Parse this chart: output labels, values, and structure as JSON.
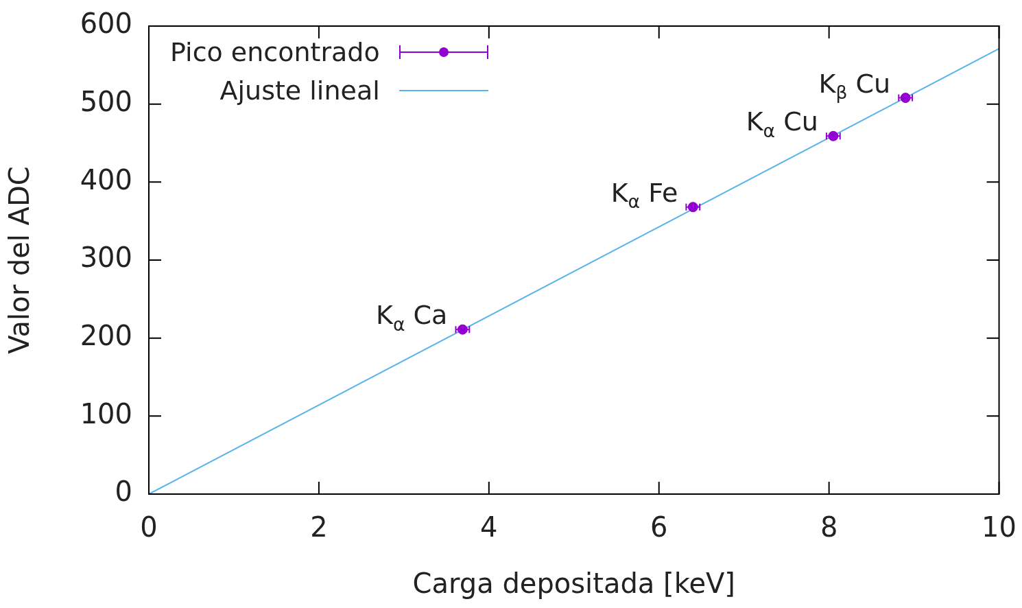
{
  "chart_data": {
    "type": "scatter",
    "xlabel": "Carga depositada [keV]",
    "ylabel": "Valor del ADC",
    "xlim": [
      0,
      10
    ],
    "xticks": [
      0,
      2,
      4,
      6,
      8,
      10
    ],
    "ylim": [
      0,
      600
    ],
    "yticks": [
      0,
      100,
      200,
      300,
      400,
      500,
      600
    ],
    "grid": false,
    "legend": "top left",
    "series": [
      {
        "name": "Pico encontrado",
        "color": "#9400d3",
        "marker": "circle",
        "x": [
          3.69,
          6.4,
          8.05,
          8.9
        ],
        "values": [
          211,
          368,
          459,
          508
        ],
        "xerrors": [
          0.08,
          0.08,
          0.08,
          0.08
        ]
      },
      {
        "name": "Ajuste lineal",
        "type": "line",
        "color": "#56b4e9",
        "marker": "none",
        "line_style": "solid",
        "x": [
          0,
          10
        ],
        "values": [
          0,
          571
        ]
      }
    ],
    "annotations": [
      {
        "text": "K$_{α}$ Ca",
        "x": 3.69,
        "y": 211
      },
      {
        "text": "K$_{α}$ Fe",
        "x": 6.4,
        "y": 368
      },
      {
        "text": "K$_{α}$ Cu",
        "x": 8.05,
        "y": 459
      },
      {
        "text": "K$_{β}$ Cu",
        "x": 8.9,
        "y": 508
      }
    ]
  }
}
